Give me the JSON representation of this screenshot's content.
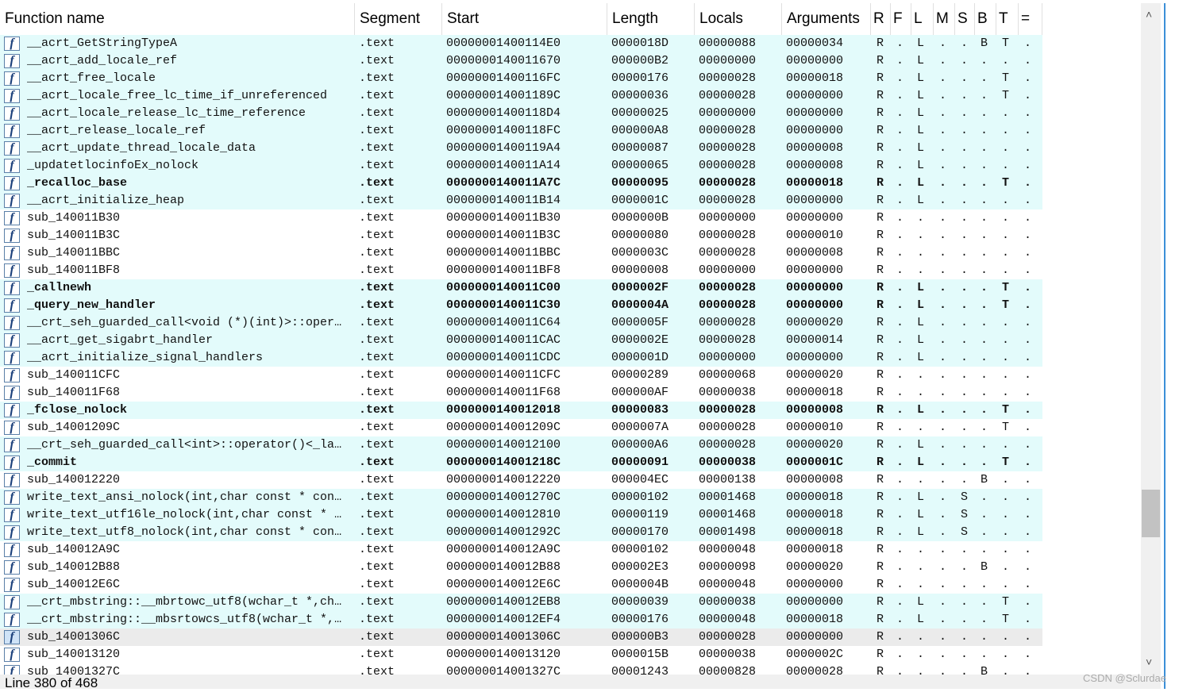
{
  "table": {
    "headers": [
      "Function name",
      "Segment",
      "Start",
      "Length",
      "Locals",
      "Arguments",
      "R",
      "F",
      "L",
      "M",
      "S",
      "B",
      "T",
      "="
    ],
    "rows": [
      {
        "library": true,
        "bold": false,
        "selected": false,
        "cells": [
          "__acrt_GetStringTypeA",
          ".text",
          "00000001400114E0",
          "0000018D",
          "00000088",
          "00000034",
          "R",
          ".",
          "L",
          ".",
          ".",
          "B",
          "T",
          "."
        ]
      },
      {
        "library": true,
        "bold": false,
        "selected": false,
        "cells": [
          "__acrt_add_locale_ref",
          ".text",
          "0000000140011670",
          "000000B2",
          "00000000",
          "00000000",
          "R",
          ".",
          "L",
          ".",
          ".",
          ".",
          ".",
          "."
        ]
      },
      {
        "library": true,
        "bold": false,
        "selected": false,
        "cells": [
          "__acrt_free_locale",
          ".text",
          "00000001400116FC",
          "00000176",
          "00000028",
          "00000018",
          "R",
          ".",
          "L",
          ".",
          ".",
          ".",
          "T",
          "."
        ]
      },
      {
        "library": true,
        "bold": false,
        "selected": false,
        "cells": [
          "__acrt_locale_free_lc_time_if_unreferenced",
          ".text",
          "000000014001189C",
          "00000036",
          "00000028",
          "00000000",
          "R",
          ".",
          "L",
          ".",
          ".",
          ".",
          "T",
          "."
        ]
      },
      {
        "library": true,
        "bold": false,
        "selected": false,
        "cells": [
          "__acrt_locale_release_lc_time_reference",
          ".text",
          "00000001400118D4",
          "00000025",
          "00000000",
          "00000000",
          "R",
          ".",
          "L",
          ".",
          ".",
          ".",
          ".",
          "."
        ]
      },
      {
        "library": true,
        "bold": false,
        "selected": false,
        "cells": [
          "__acrt_release_locale_ref",
          ".text",
          "00000001400118FC",
          "000000A8",
          "00000028",
          "00000000",
          "R",
          ".",
          "L",
          ".",
          ".",
          ".",
          ".",
          "."
        ]
      },
      {
        "library": true,
        "bold": false,
        "selected": false,
        "cells": [
          "__acrt_update_thread_locale_data",
          ".text",
          "00000001400119A4",
          "00000087",
          "00000028",
          "00000008",
          "R",
          ".",
          "L",
          ".",
          ".",
          ".",
          ".",
          "."
        ]
      },
      {
        "library": true,
        "bold": false,
        "selected": false,
        "cells": [
          "_updatetlocinfoEx_nolock",
          ".text",
          "0000000140011A14",
          "00000065",
          "00000028",
          "00000008",
          "R",
          ".",
          "L",
          ".",
          ".",
          ".",
          ".",
          "."
        ]
      },
      {
        "library": true,
        "bold": true,
        "selected": false,
        "cells": [
          "_recalloc_base",
          ".text",
          "0000000140011A7C",
          "00000095",
          "00000028",
          "00000018",
          "R",
          ".",
          "L",
          ".",
          ".",
          ".",
          "T",
          "."
        ]
      },
      {
        "library": true,
        "bold": false,
        "selected": false,
        "cells": [
          "__acrt_initialize_heap",
          ".text",
          "0000000140011B14",
          "0000001C",
          "00000028",
          "00000000",
          "R",
          ".",
          "L",
          ".",
          ".",
          ".",
          ".",
          "."
        ]
      },
      {
        "library": false,
        "bold": false,
        "selected": false,
        "cells": [
          "sub_140011B30",
          ".text",
          "0000000140011B30",
          "0000000B",
          "00000000",
          "00000000",
          "R",
          ".",
          ".",
          ".",
          ".",
          ".",
          ".",
          "."
        ]
      },
      {
        "library": false,
        "bold": false,
        "selected": false,
        "cells": [
          "sub_140011B3C",
          ".text",
          "0000000140011B3C",
          "00000080",
          "00000028",
          "00000010",
          "R",
          ".",
          ".",
          ".",
          ".",
          ".",
          ".",
          "."
        ]
      },
      {
        "library": false,
        "bold": false,
        "selected": false,
        "cells": [
          "sub_140011BBC",
          ".text",
          "0000000140011BBC",
          "0000003C",
          "00000028",
          "00000008",
          "R",
          ".",
          ".",
          ".",
          ".",
          ".",
          ".",
          "."
        ]
      },
      {
        "library": false,
        "bold": false,
        "selected": false,
        "cells": [
          "sub_140011BF8",
          ".text",
          "0000000140011BF8",
          "00000008",
          "00000000",
          "00000000",
          "R",
          ".",
          ".",
          ".",
          ".",
          ".",
          ".",
          "."
        ]
      },
      {
        "library": true,
        "bold": true,
        "selected": false,
        "cells": [
          "_callnewh",
          ".text",
          "0000000140011C00",
          "0000002F",
          "00000028",
          "00000000",
          "R",
          ".",
          "L",
          ".",
          ".",
          ".",
          "T",
          "."
        ]
      },
      {
        "library": true,
        "bold": true,
        "selected": false,
        "cells": [
          "_query_new_handler",
          ".text",
          "0000000140011C30",
          "0000004A",
          "00000028",
          "00000000",
          "R",
          ".",
          "L",
          ".",
          ".",
          ".",
          "T",
          "."
        ]
      },
      {
        "library": true,
        "bold": false,
        "selected": false,
        "cells": [
          "__crt_seh_guarded_call<void (*)(int)>::oper…",
          ".text",
          "0000000140011C64",
          "0000005F",
          "00000028",
          "00000020",
          "R",
          ".",
          "L",
          ".",
          ".",
          ".",
          ".",
          "."
        ]
      },
      {
        "library": true,
        "bold": false,
        "selected": false,
        "cells": [
          "__acrt_get_sigabrt_handler",
          ".text",
          "0000000140011CAC",
          "0000002E",
          "00000028",
          "00000014",
          "R",
          ".",
          "L",
          ".",
          ".",
          ".",
          ".",
          "."
        ]
      },
      {
        "library": true,
        "bold": false,
        "selected": false,
        "cells": [
          "__acrt_initialize_signal_handlers",
          ".text",
          "0000000140011CDC",
          "0000001D",
          "00000000",
          "00000000",
          "R",
          ".",
          "L",
          ".",
          ".",
          ".",
          ".",
          "."
        ]
      },
      {
        "library": false,
        "bold": false,
        "selected": false,
        "cells": [
          "sub_140011CFC",
          ".text",
          "0000000140011CFC",
          "00000289",
          "00000068",
          "00000020",
          "R",
          ".",
          ".",
          ".",
          ".",
          ".",
          ".",
          "."
        ]
      },
      {
        "library": false,
        "bold": false,
        "selected": false,
        "cells": [
          "sub_140011F68",
          ".text",
          "0000000140011F68",
          "000000AF",
          "00000038",
          "00000018",
          "R",
          ".",
          ".",
          ".",
          ".",
          ".",
          ".",
          "."
        ]
      },
      {
        "library": true,
        "bold": true,
        "selected": false,
        "cells": [
          "_fclose_nolock",
          ".text",
          "0000000140012018",
          "00000083",
          "00000028",
          "00000008",
          "R",
          ".",
          "L",
          ".",
          ".",
          ".",
          "T",
          "."
        ]
      },
      {
        "library": false,
        "bold": false,
        "selected": false,
        "cells": [
          "sub_14001209C",
          ".text",
          "000000014001209C",
          "0000007A",
          "00000028",
          "00000010",
          "R",
          ".",
          ".",
          ".",
          ".",
          ".",
          "T",
          "."
        ]
      },
      {
        "library": true,
        "bold": false,
        "selected": false,
        "cells": [
          "__crt_seh_guarded_call<int>::operator()<_la…",
          ".text",
          "0000000140012100",
          "000000A6",
          "00000028",
          "00000020",
          "R",
          ".",
          "L",
          ".",
          ".",
          ".",
          ".",
          "."
        ]
      },
      {
        "library": true,
        "bold": true,
        "selected": false,
        "cells": [
          "_commit",
          ".text",
          "000000014001218C",
          "00000091",
          "00000038",
          "0000001C",
          "R",
          ".",
          "L",
          ".",
          ".",
          ".",
          "T",
          "."
        ]
      },
      {
        "library": false,
        "bold": false,
        "selected": false,
        "cells": [
          "sub_140012220",
          ".text",
          "0000000140012220",
          "000004EC",
          "00000138",
          "00000008",
          "R",
          ".",
          ".",
          ".",
          ".",
          "B",
          ".",
          "."
        ]
      },
      {
        "library": true,
        "bold": false,
        "selected": false,
        "cells": [
          "write_text_ansi_nolock(int,char const * con…",
          ".text",
          "000000014001270C",
          "00000102",
          "00001468",
          "00000018",
          "R",
          ".",
          "L",
          ".",
          "S",
          ".",
          ".",
          "."
        ]
      },
      {
        "library": true,
        "bold": false,
        "selected": false,
        "cells": [
          "write_text_utf16le_nolock(int,char const * …",
          ".text",
          "0000000140012810",
          "00000119",
          "00001468",
          "00000018",
          "R",
          ".",
          "L",
          ".",
          "S",
          ".",
          ".",
          "."
        ]
      },
      {
        "library": true,
        "bold": false,
        "selected": false,
        "cells": [
          "write_text_utf8_nolock(int,char const * con…",
          ".text",
          "000000014001292C",
          "00000170",
          "00001498",
          "00000018",
          "R",
          ".",
          "L",
          ".",
          "S",
          ".",
          ".",
          "."
        ]
      },
      {
        "library": false,
        "bold": false,
        "selected": false,
        "cells": [
          "sub_140012A9C",
          ".text",
          "0000000140012A9C",
          "00000102",
          "00000048",
          "00000018",
          "R",
          ".",
          ".",
          ".",
          ".",
          ".",
          ".",
          "."
        ]
      },
      {
        "library": false,
        "bold": false,
        "selected": false,
        "cells": [
          "sub_140012B88",
          ".text",
          "0000000140012B88",
          "000002E3",
          "00000098",
          "00000020",
          "R",
          ".",
          ".",
          ".",
          ".",
          "B",
          ".",
          "."
        ]
      },
      {
        "library": false,
        "bold": false,
        "selected": false,
        "cells": [
          "sub_140012E6C",
          ".text",
          "0000000140012E6C",
          "0000004B",
          "00000048",
          "00000000",
          "R",
          ".",
          ".",
          ".",
          ".",
          ".",
          ".",
          "."
        ]
      },
      {
        "library": true,
        "bold": false,
        "selected": false,
        "cells": [
          "__crt_mbstring::__mbrtowc_utf8(wchar_t *,ch…",
          ".text",
          "0000000140012EB8",
          "00000039",
          "00000038",
          "00000000",
          "R",
          ".",
          "L",
          ".",
          ".",
          ".",
          "T",
          "."
        ]
      },
      {
        "library": true,
        "bold": false,
        "selected": false,
        "cells": [
          "__crt_mbstring::__mbsrtowcs_utf8(wchar_t *,…",
          ".text",
          "0000000140012EF4",
          "00000176",
          "00000048",
          "00000018",
          "R",
          ".",
          "L",
          ".",
          ".",
          ".",
          "T",
          "."
        ]
      },
      {
        "library": false,
        "bold": false,
        "selected": true,
        "cells": [
          "sub_14001306C",
          ".text",
          "000000014001306C",
          "000000B3",
          "00000028",
          "00000000",
          "R",
          ".",
          ".",
          ".",
          ".",
          ".",
          ".",
          "."
        ]
      },
      {
        "library": false,
        "bold": false,
        "selected": false,
        "cells": [
          "sub_140013120",
          ".text",
          "0000000140013120",
          "0000015B",
          "00000038",
          "0000002C",
          "R",
          ".",
          ".",
          ".",
          ".",
          ".",
          ".",
          "."
        ]
      },
      {
        "library": false,
        "bold": false,
        "selected": false,
        "cells": [
          "sub_14001327C",
          ".text",
          "000000014001327C",
          "00001243",
          "00000828",
          "00000028",
          "R",
          ".",
          ".",
          ".",
          ".",
          "B",
          ".",
          "."
        ]
      }
    ]
  },
  "status": "Line 380 of 468",
  "watermark": "CSDN @Sclurdae"
}
